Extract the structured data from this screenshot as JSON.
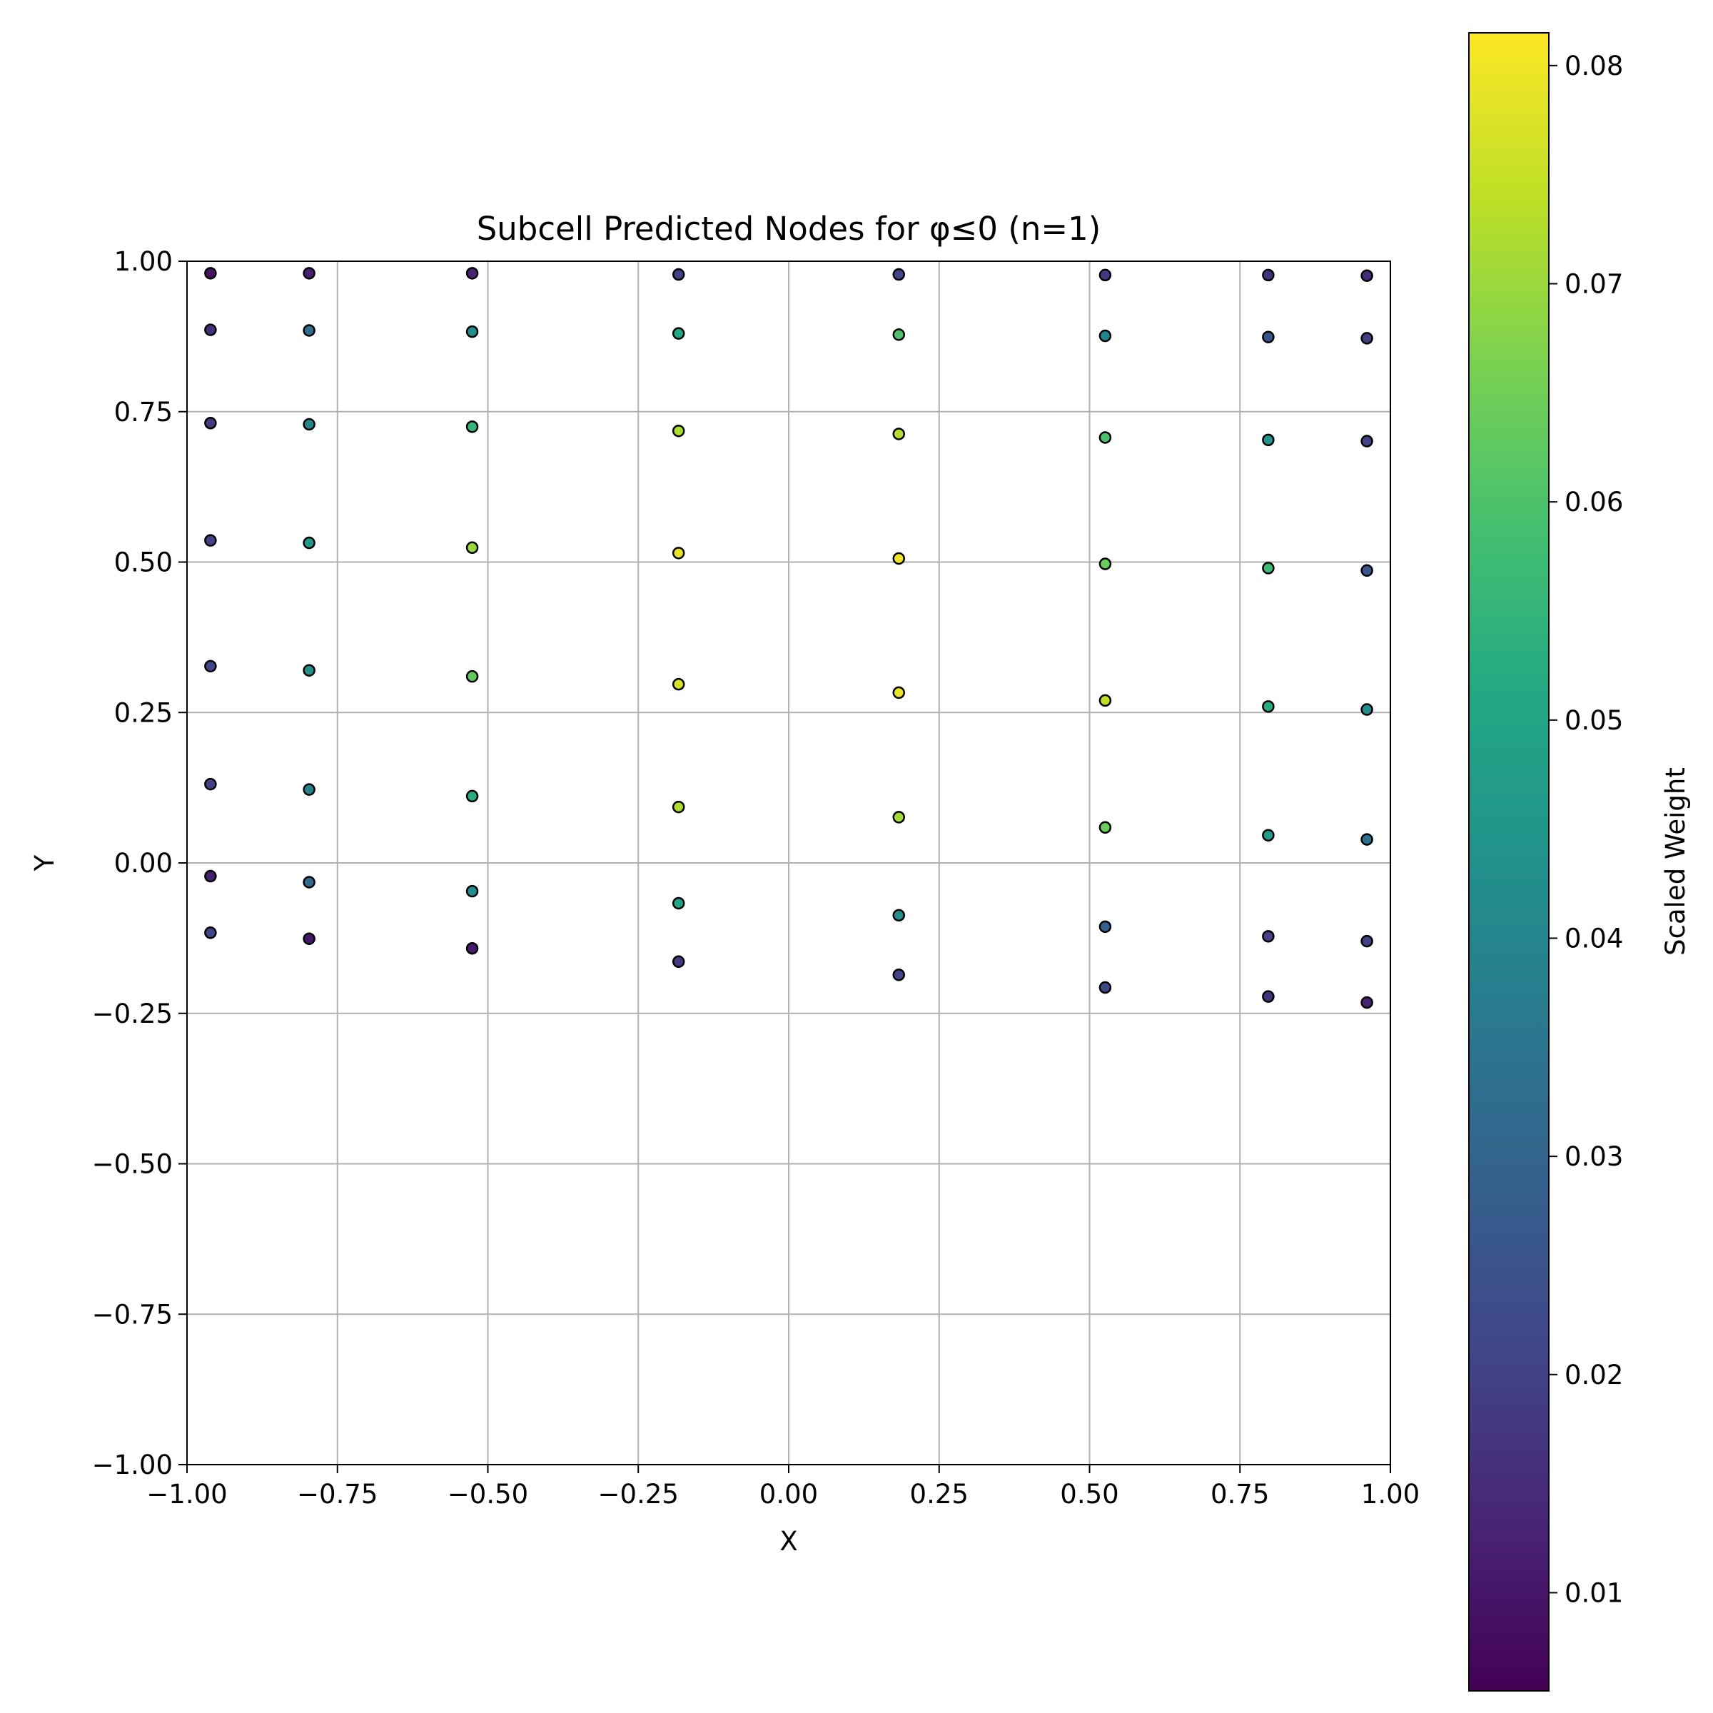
{
  "chart_data": {
    "type": "scatter",
    "title": "Subcell Predicted Nodes for φ≤0 (n=1)",
    "xlabel": "X",
    "ylabel": "Y",
    "xlim": [
      -1.0,
      1.0
    ],
    "ylim": [
      -1.0,
      1.0
    ],
    "grid": true,
    "x_ticks": [
      "−1.00",
      "−0.75",
      "−0.50",
      "−0.25",
      "0.00",
      "0.25",
      "0.50",
      "0.75",
      "1.00"
    ],
    "y_ticks": [
      "−1.00",
      "−0.75",
      "−0.50",
      "−0.25",
      "0.00",
      "0.25",
      "0.50",
      "0.75",
      "1.00"
    ],
    "colorbar": {
      "label": "Scaled Weight",
      "colormap": "viridis",
      "range": [
        0.0055,
        0.0815
      ],
      "ticks": [
        "0.01",
        "0.02",
        "0.03",
        "0.04",
        "0.05",
        "0.06",
        "0.07",
        "0.08"
      ]
    },
    "points": [
      {
        "x": -0.961,
        "y": 0.98,
        "w": 0.009
      },
      {
        "x": -0.961,
        "y": 0.886,
        "w": 0.016
      },
      {
        "x": -0.961,
        "y": 0.731,
        "w": 0.018
      },
      {
        "x": -0.961,
        "y": 0.536,
        "w": 0.02
      },
      {
        "x": -0.961,
        "y": 0.327,
        "w": 0.021
      },
      {
        "x": -0.961,
        "y": 0.131,
        "w": 0.02
      },
      {
        "x": -0.961,
        "y": -0.022,
        "w": 0.012
      },
      {
        "x": -0.961,
        "y": -0.116,
        "w": 0.021
      },
      {
        "x": -0.797,
        "y": 0.98,
        "w": 0.012
      },
      {
        "x": -0.797,
        "y": 0.885,
        "w": 0.033
      },
      {
        "x": -0.797,
        "y": 0.729,
        "w": 0.04
      },
      {
        "x": -0.797,
        "y": 0.532,
        "w": 0.046
      },
      {
        "x": -0.797,
        "y": 0.32,
        "w": 0.044
      },
      {
        "x": -0.797,
        "y": 0.122,
        "w": 0.039
      },
      {
        "x": -0.797,
        "y": -0.032,
        "w": 0.032
      },
      {
        "x": -0.797,
        "y": -0.126,
        "w": 0.01
      },
      {
        "x": -0.526,
        "y": 0.98,
        "w": 0.013
      },
      {
        "x": -0.526,
        "y": 0.883,
        "w": 0.043
      },
      {
        "x": -0.526,
        "y": 0.725,
        "w": 0.055
      },
      {
        "x": -0.526,
        "y": 0.524,
        "w": 0.07
      },
      {
        "x": -0.526,
        "y": 0.31,
        "w": 0.063
      },
      {
        "x": -0.526,
        "y": 0.111,
        "w": 0.052
      },
      {
        "x": -0.526,
        "y": -0.047,
        "w": 0.042
      },
      {
        "x": -0.526,
        "y": -0.142,
        "w": 0.011
      },
      {
        "x": -0.183,
        "y": 0.978,
        "w": 0.02
      },
      {
        "x": -0.183,
        "y": 0.88,
        "w": 0.051
      },
      {
        "x": -0.183,
        "y": 0.718,
        "w": 0.072
      },
      {
        "x": -0.183,
        "y": 0.515,
        "w": 0.079
      },
      {
        "x": -0.183,
        "y": 0.297,
        "w": 0.077
      },
      {
        "x": -0.183,
        "y": 0.093,
        "w": 0.072
      },
      {
        "x": -0.183,
        "y": -0.067,
        "w": 0.05
      },
      {
        "x": -0.183,
        "y": -0.164,
        "w": 0.018
      },
      {
        "x": 0.183,
        "y": 0.978,
        "w": 0.021
      },
      {
        "x": 0.183,
        "y": 0.878,
        "w": 0.06
      },
      {
        "x": 0.183,
        "y": 0.713,
        "w": 0.073
      },
      {
        "x": 0.183,
        "y": 0.506,
        "w": 0.08
      },
      {
        "x": 0.183,
        "y": 0.283,
        "w": 0.079
      },
      {
        "x": 0.183,
        "y": 0.076,
        "w": 0.071
      },
      {
        "x": 0.183,
        "y": -0.087,
        "w": 0.043
      },
      {
        "x": 0.183,
        "y": -0.186,
        "w": 0.021
      },
      {
        "x": 0.526,
        "y": 0.977,
        "w": 0.018
      },
      {
        "x": 0.526,
        "y": 0.876,
        "w": 0.04
      },
      {
        "x": 0.526,
        "y": 0.707,
        "w": 0.06
      },
      {
        "x": 0.526,
        "y": 0.497,
        "w": 0.064
      },
      {
        "x": 0.526,
        "y": 0.27,
        "w": 0.074
      },
      {
        "x": 0.526,
        "y": 0.059,
        "w": 0.064
      },
      {
        "x": 0.526,
        "y": -0.106,
        "w": 0.029
      },
      {
        "x": 0.526,
        "y": -0.207,
        "w": 0.023
      },
      {
        "x": 0.797,
        "y": 0.977,
        "w": 0.016
      },
      {
        "x": 0.797,
        "y": 0.874,
        "w": 0.025
      },
      {
        "x": 0.797,
        "y": 0.703,
        "w": 0.044
      },
      {
        "x": 0.797,
        "y": 0.49,
        "w": 0.057
      },
      {
        "x": 0.797,
        "y": 0.26,
        "w": 0.052
      },
      {
        "x": 0.797,
        "y": 0.046,
        "w": 0.047
      },
      {
        "x": 0.797,
        "y": -0.122,
        "w": 0.02
      },
      {
        "x": 0.797,
        "y": -0.222,
        "w": 0.017
      },
      {
        "x": 0.961,
        "y": 0.976,
        "w": 0.015
      },
      {
        "x": 0.961,
        "y": 0.872,
        "w": 0.019
      },
      {
        "x": 0.961,
        "y": 0.701,
        "w": 0.021
      },
      {
        "x": 0.961,
        "y": 0.486,
        "w": 0.026
      },
      {
        "x": 0.961,
        "y": 0.255,
        "w": 0.043
      },
      {
        "x": 0.961,
        "y": 0.039,
        "w": 0.033
      },
      {
        "x": 0.961,
        "y": -0.13,
        "w": 0.02
      },
      {
        "x": 0.961,
        "y": -0.232,
        "w": 0.013
      }
    ]
  }
}
